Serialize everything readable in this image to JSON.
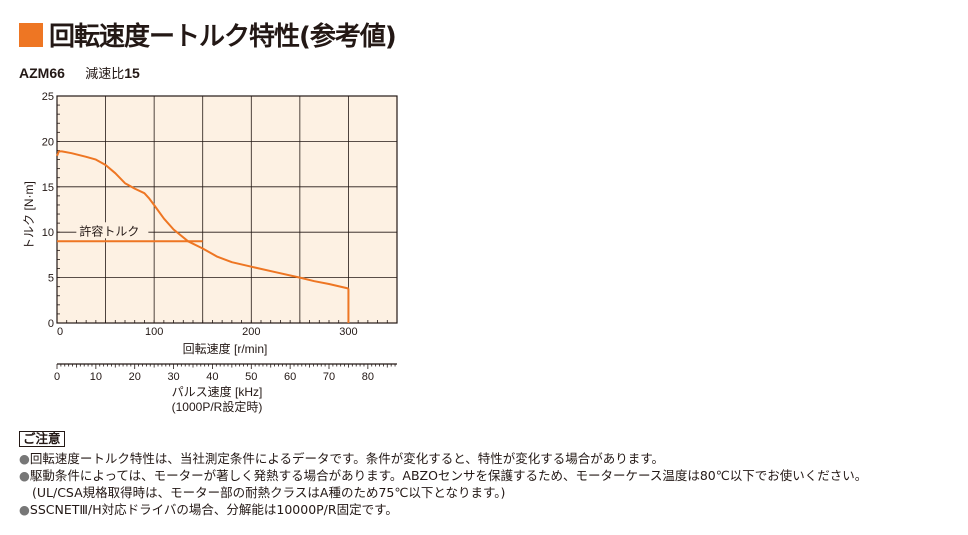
{
  "header": {
    "title": "回転速度ートルク特性(参考値)",
    "model": "AZM66",
    "ratio_label": "減速比",
    "ratio_value": "15"
  },
  "colors": {
    "accent": "#ee7623",
    "curve": "#ee7623",
    "grid": "#231815"
  },
  "chart_data": {
    "type": "line",
    "x": [
      0,
      2,
      5,
      15,
      30,
      40,
      50,
      60,
      70,
      80,
      90,
      95,
      100,
      110,
      120,
      135,
      150,
      165,
      180,
      200,
      225,
      250,
      265,
      280,
      300
    ],
    "series": [
      {
        "name": "",
        "values": [
          18.4,
          18.9,
          18.9,
          18.7,
          18.3,
          18.0,
          17.4,
          16.5,
          15.4,
          14.8,
          14.3,
          13.7,
          13.0,
          11.5,
          10.3,
          9.0,
          8.2,
          7.3,
          6.7,
          6.2,
          5.6,
          5.0,
          4.6,
          4.3,
          3.8
        ]
      }
    ],
    "permissible_torque": {
      "label": "許容トルク",
      "value": 9,
      "x_range": [
        0,
        150
      ]
    },
    "curve_drop": {
      "x": 300,
      "from": 3.8,
      "to": 0
    },
    "xlabel": "回転速度 [r/min]",
    "ylabel": "トルク [N·m]",
    "xlim": [
      0,
      350
    ],
    "ylim": [
      0,
      25
    ],
    "x_ticks": [
      "0",
      "100",
      "200",
      "300"
    ],
    "y_ticks": [
      "0",
      "5",
      "10",
      "15",
      "20",
      "25"
    ],
    "secondary_axis": {
      "label_line1": "パルス速度 [kHz]",
      "label_line2": "(1000P/R設定時)",
      "ticks": [
        "0",
        "10",
        "20",
        "30",
        "40",
        "50",
        "60",
        "70",
        "80"
      ],
      "lim": [
        0,
        87.5
      ]
    },
    "grid": true
  },
  "notes": {
    "heading": "ご注意",
    "lines": [
      "回転速度ートルク特性は、当社測定条件によるデータです。条件が変化すると、特性が変化する場合があります。",
      "駆動条件によっては、モーターが著しく発熱する場合があります。ABZOセンサを保護するため、モーターケース温度は80℃以下でお使いください。",
      "(UL/CSA規格取得時は、モーター部の耐熱クラスはA種のため75℃以下となります。)",
      "SSCNETⅢ/H対応ドライバの場合、分解能は10000P/R固定です。"
    ]
  }
}
